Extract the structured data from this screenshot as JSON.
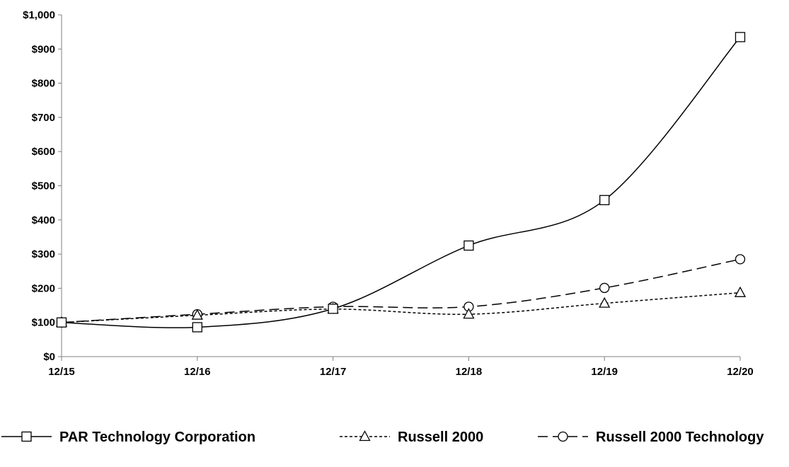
{
  "chart_data": {
    "type": "line",
    "title": "",
    "xlabel": "",
    "ylabel": "",
    "categories": [
      "12/15",
      "12/16",
      "12/17",
      "12/18",
      "12/19",
      "12/20"
    ],
    "ylim": [
      0,
      1000
    ],
    "yticks": [
      0,
      100,
      200,
      300,
      400,
      500,
      600,
      700,
      800,
      900,
      1000
    ],
    "ytick_labels": [
      "$0",
      "$100",
      "$200",
      "$300",
      "$400",
      "$500",
      "$600",
      "$700",
      "$800",
      "$900",
      "$1,000"
    ],
    "grid": false,
    "legend_position": "bottom",
    "series": [
      {
        "name": "PAR Technology Corporation",
        "marker": "square",
        "line": "solid",
        "smooth": true,
        "values": [
          100,
          86,
          140,
          325,
          458,
          935
        ]
      },
      {
        "name": "Russell 2000",
        "marker": "triangle",
        "line": "dotted",
        "smooth": true,
        "values": [
          100,
          121,
          139,
          124,
          156,
          187
        ]
      },
      {
        "name": "Russell 2000 Technology",
        "marker": "circle",
        "line": "dashed",
        "smooth": true,
        "values": [
          100,
          124,
          146,
          146,
          201,
          285
        ]
      }
    ]
  }
}
